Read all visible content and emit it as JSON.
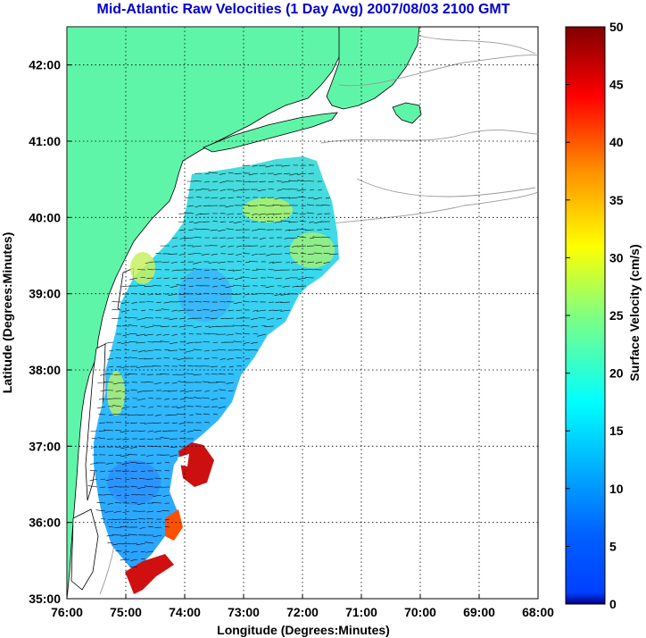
{
  "title": "Mid-Atlantic Raw Velocities (1 Day Avg) 2007/08/03 2100 GMT",
  "x_axis": {
    "label": "Longitude (Degrees:Minutes)",
    "ticks": [
      "76:00",
      "75:00",
      "74:00",
      "73:00",
      "72:00",
      "71:00",
      "70:00",
      "69:00",
      "68:00"
    ],
    "range": [
      -76,
      -68
    ]
  },
  "y_axis": {
    "label": "Latitude (Degrees:Minutes)",
    "ticks": [
      "35:00",
      "36:00",
      "37:00",
      "38:00",
      "39:00",
      "40:00",
      "41:00",
      "42:00"
    ],
    "range": [
      35,
      42.5
    ]
  },
  "colorbar": {
    "label": "Surface Velocity (cm/s)",
    "ticks": [
      "0",
      "5",
      "10",
      "15",
      "20",
      "25",
      "30",
      "35",
      "40",
      "45",
      "50"
    ],
    "range": [
      0,
      50
    ],
    "colormap": "jet"
  },
  "colors": {
    "title": "#0000cc",
    "land": "#5ff5a8",
    "ocean": "#ffffff",
    "coast_outline": "#000000",
    "bathymetry": "#9a9a9a",
    "vectors": "#000000"
  },
  "grid": true
}
